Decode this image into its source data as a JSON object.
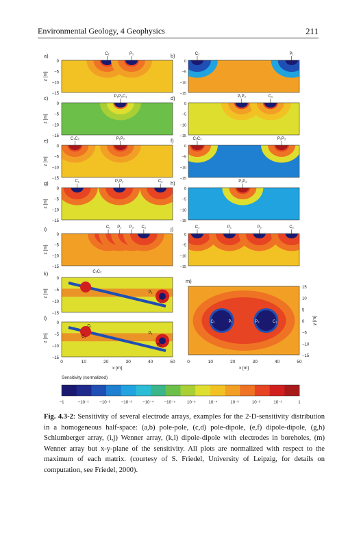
{
  "header": {
    "running_title": "Environmental Geology, 4 Geophysics",
    "page_number": "211"
  },
  "figure": {
    "panels": [
      {
        "letter": "a)",
        "electrodes": [
          "C₁",
          "P₁"
        ]
      },
      {
        "letter": "b)",
        "electrodes": [
          "C₁",
          "P₁"
        ]
      },
      {
        "letter": "c)",
        "electrodes": [
          "P₁P₂C₁"
        ]
      },
      {
        "letter": "d)",
        "electrodes": [
          "P₁P₂",
          "C₁"
        ]
      },
      {
        "letter": "e)",
        "electrodes": [
          "C₁C₂",
          "P₁P₂"
        ]
      },
      {
        "letter": "f)",
        "electrodes": [
          "C₁C₂",
          "P₁P₂"
        ]
      },
      {
        "letter": "g)",
        "electrodes": [
          "C₁",
          "P₁P₂",
          "C₂"
        ]
      },
      {
        "letter": "h)",
        "electrodes": [
          "P₁P₂"
        ]
      },
      {
        "letter": "i)",
        "electrodes": [
          "C₁",
          "P₁",
          "P₂",
          "C₂"
        ]
      },
      {
        "letter": "j)",
        "electrodes": [
          "C₁",
          "P₁",
          "P₂",
          "C₂"
        ]
      },
      {
        "letter": "k)",
        "electrodes": [
          "C₁C₂",
          "P₁",
          "P₂"
        ]
      },
      {
        "letter": "l)",
        "electrodes": [
          "C₁",
          "C₂",
          "P₁",
          "P₂"
        ]
      },
      {
        "letter": "m)",
        "electrodes": [
          "C₁",
          "P₁",
          "P₂",
          "C₂"
        ]
      }
    ],
    "z_axis_label": "z [m]",
    "y_axis_label": "y [m]",
    "x_axis_label": "x [m]",
    "z_ticks": [
      "0",
      "−5",
      "−10",
      "−15"
    ],
    "y_ticks": [
      "15",
      "10",
      "5",
      "0",
      "−5",
      "−10",
      "−15"
    ],
    "x_ticks": [
      "0",
      "10",
      "20",
      "30",
      "40",
      "50"
    ],
    "colorbar_title": "Sensitivity (normalized)",
    "colorbar_ticks": [
      "−1",
      "−10⁻¹",
      "−10⁻²",
      "−10⁻³",
      "−10⁻⁴",
      "−10⁻⁵",
      "10⁻⁵",
      "10⁻⁴",
      "10⁻³",
      "10⁻²",
      "10⁻¹",
      "1"
    ],
    "colorbar_colors": [
      "#191970",
      "#1e2a8c",
      "#1f4fb4",
      "#1f7fd0",
      "#20a3de",
      "#2bbcd6",
      "#3bb58a",
      "#6cc04a",
      "#a8cf35",
      "#dede2f",
      "#f2c224",
      "#f2a025",
      "#ef7324",
      "#e64422",
      "#d11f1f",
      "#a81a1a"
    ]
  },
  "caption": {
    "label": "Fig. 4.3-2",
    "text": ": Sensitivity of several electrode arrays, examples for the 2-D-sensitivity distribution in a homogeneous half-space: (a,b) pole-pole, (c,d) pole-dipole, (e,f) dipole-dipole, (g,h) Schlumberger array, (i,j) Wenner array, (k,l) dipole-dipole with electrodes in boreholes, (m) Wenner array but x-y-plane of the sensitivity. All plots are normalized with respect to the maximum of each matrix. (courtesy of S. Friedel, University of Leipzig, for details on computation, see Friedel, 2000)."
  }
}
